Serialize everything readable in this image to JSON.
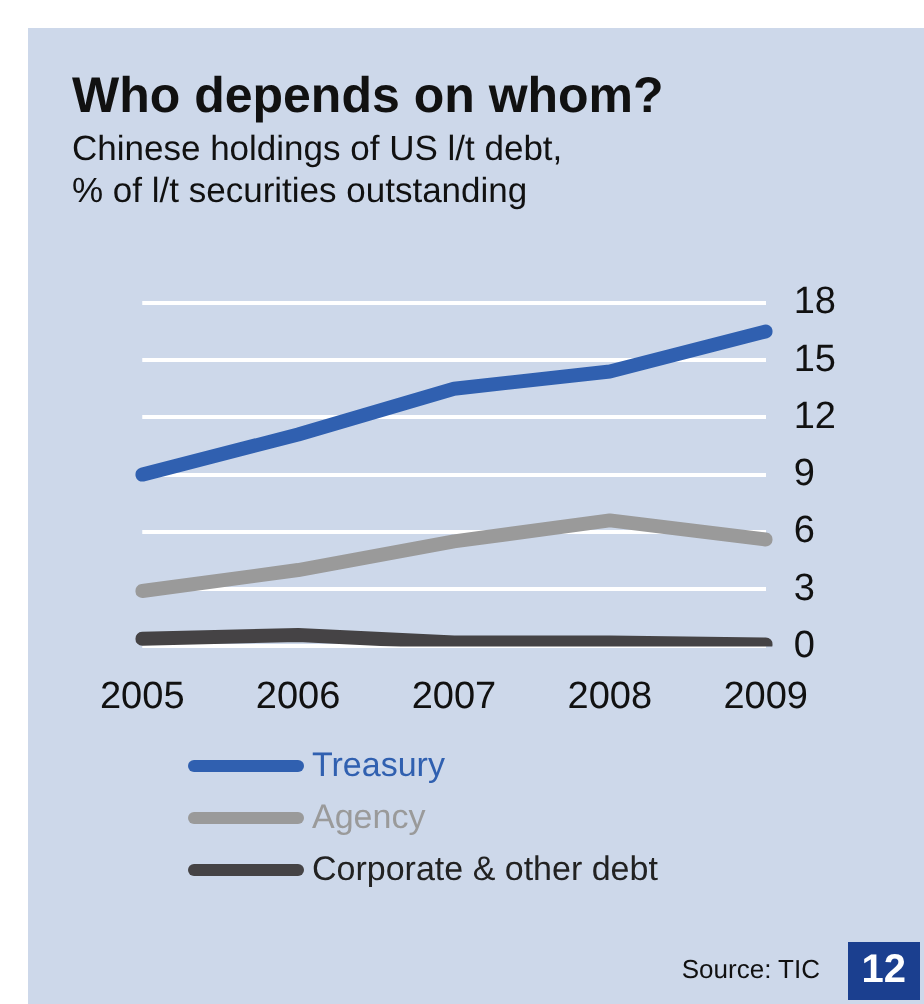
{
  "chart_data": {
    "type": "line",
    "title": "Who depends on whom?",
    "subtitle": "Chinese holdings of US l/t debt,\n% of l/t securities outstanding",
    "categories": [
      "2005",
      "2006",
      "2007",
      "2008",
      "2009"
    ],
    "series": [
      {
        "name": "Treasury",
        "color": "#3060b0",
        "values": [
          9.0,
          11.1,
          13.5,
          14.4,
          16.5
        ]
      },
      {
        "name": "Agency",
        "color": "#9a9a9a",
        "values": [
          2.9,
          4.0,
          5.5,
          6.6,
          5.6
        ]
      },
      {
        "name": "Corporate & other debt",
        "color": "#454345",
        "values": [
          0.4,
          0.6,
          0.2,
          0.2,
          0.1
        ]
      }
    ],
    "ylim": [
      0,
      18
    ],
    "yticks": [
      0,
      3,
      6,
      9,
      12,
      15,
      18
    ],
    "grid": "y",
    "legend": "bottom",
    "marker": "none",
    "line_style": "solid",
    "annotations": [
      "Source: TIC",
      "12"
    ]
  }
}
